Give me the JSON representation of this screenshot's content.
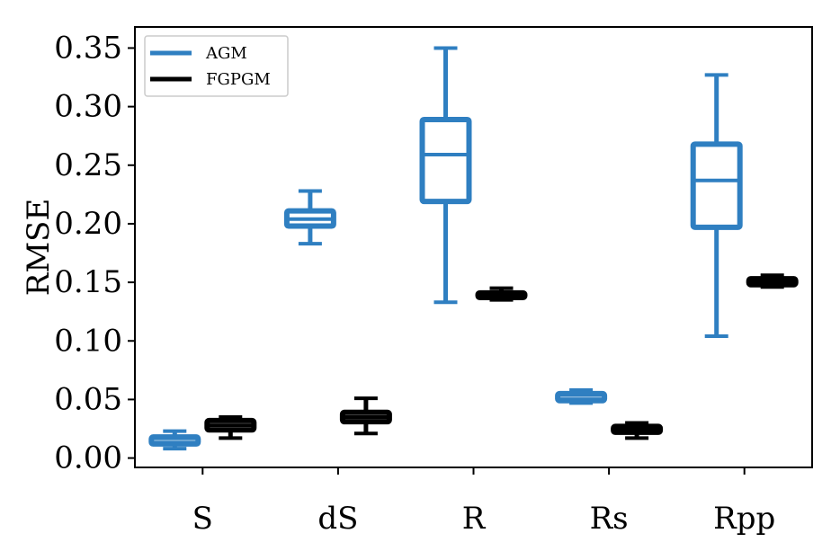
{
  "chart_data": {
    "type": "box",
    "categories": [
      "S",
      "dS",
      "R",
      "Rs",
      "Rpp"
    ],
    "ylabel": "RMSE",
    "xlabel": "",
    "ylim": [
      -0.008,
      0.368
    ],
    "yticks": [
      "0.00",
      "0.05",
      "0.10",
      "0.15",
      "0.20",
      "0.25",
      "0.30",
      "0.35"
    ],
    "ytick_values": [
      0.0,
      0.05,
      0.1,
      0.15,
      0.2,
      0.25,
      0.3,
      0.35
    ],
    "legend_position": "top-left",
    "grid": false,
    "series": [
      {
        "name": "AGM",
        "color": "#2f7fc1",
        "boxes": [
          {
            "min": 0.008,
            "q1": 0.012,
            "median": 0.015,
            "q3": 0.018,
            "max": 0.023
          },
          {
            "min": 0.183,
            "q1": 0.198,
            "median": 0.204,
            "q3": 0.211,
            "max": 0.228
          },
          {
            "min": 0.133,
            "q1": 0.219,
            "median": 0.259,
            "q3": 0.289,
            "max": 0.35
          },
          {
            "min": 0.047,
            "q1": 0.049,
            "median": 0.052,
            "q3": 0.055,
            "max": 0.058
          },
          {
            "min": 0.104,
            "q1": 0.197,
            "median": 0.237,
            "q3": 0.268,
            "max": 0.327
          }
        ]
      },
      {
        "name": "FGPGM",
        "color": "#000000",
        "boxes": [
          {
            "min": 0.017,
            "q1": 0.024,
            "median": 0.028,
            "q3": 0.032,
            "max": 0.035
          },
          {
            "min": 0.021,
            "q1": 0.031,
            "median": 0.035,
            "q3": 0.039,
            "max": 0.051
          },
          {
            "min": 0.135,
            "q1": 0.137,
            "median": 0.139,
            "q3": 0.141,
            "max": 0.145
          },
          {
            "min": 0.017,
            "q1": 0.022,
            "median": 0.025,
            "q3": 0.027,
            "max": 0.03
          },
          {
            "min": 0.146,
            "q1": 0.148,
            "median": 0.151,
            "q3": 0.153,
            "max": 0.156
          }
        ]
      }
    ]
  }
}
